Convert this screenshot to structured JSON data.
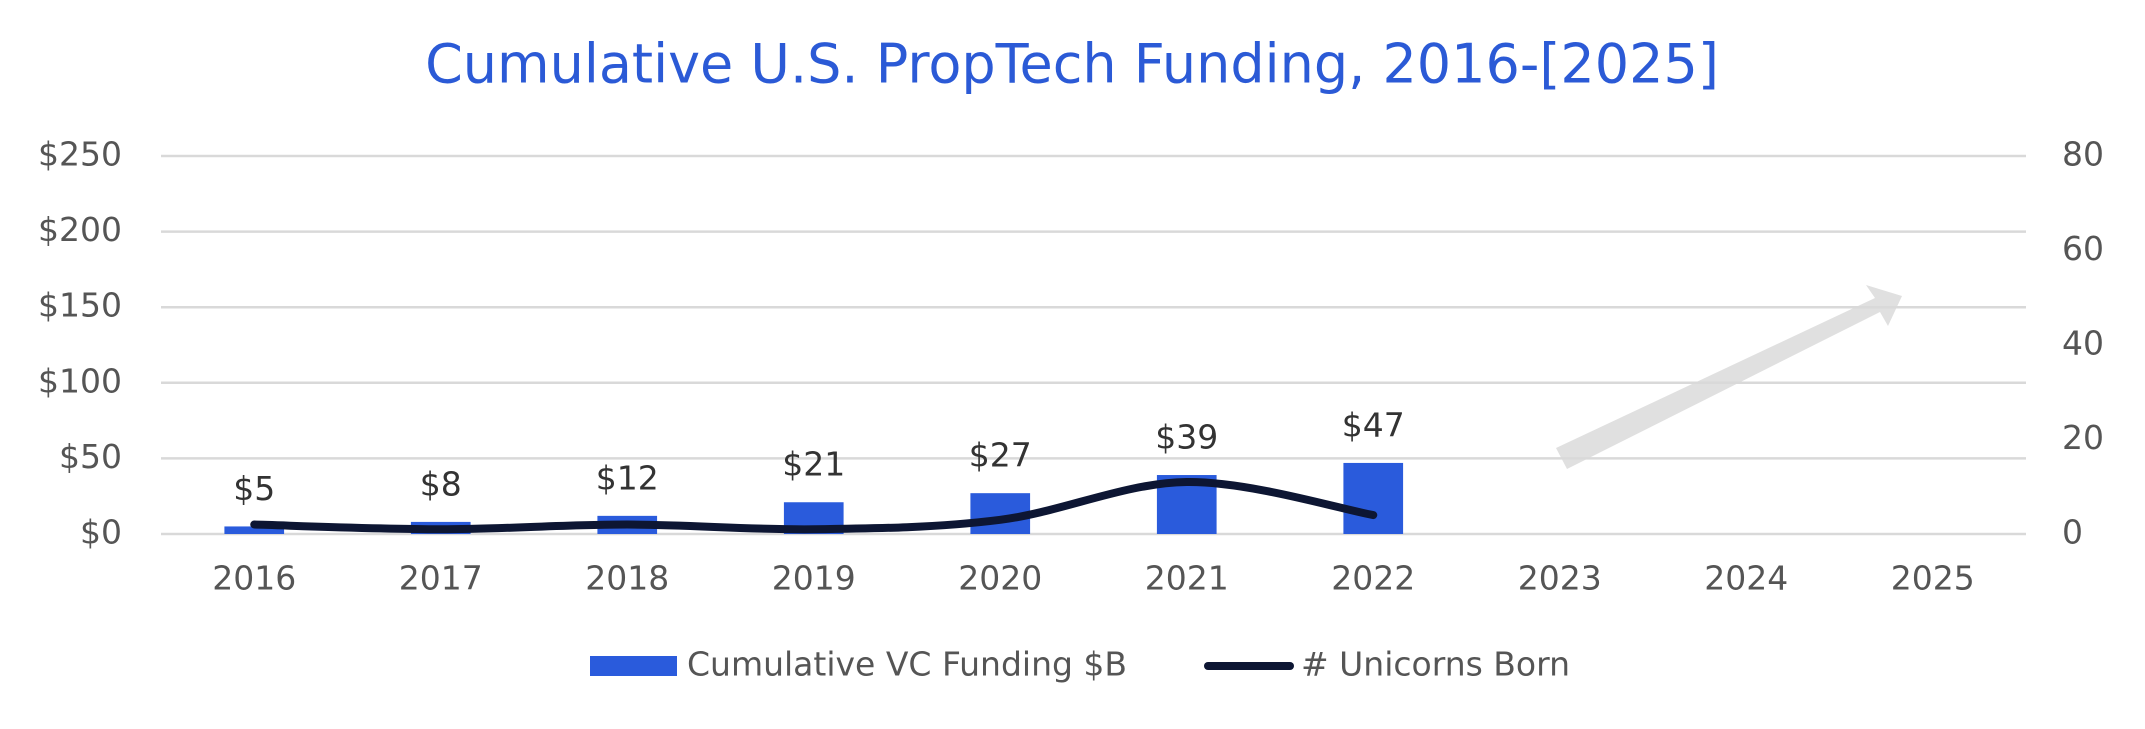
{
  "chart_data": {
    "type": "bar",
    "title": "Cumulative U.S. PropTech Funding, 2016-[2025]",
    "categories": [
      "2016",
      "2017",
      "2018",
      "2019",
      "2020",
      "2021",
      "2022",
      "2023",
      "2024",
      "2025"
    ],
    "series": [
      {
        "name": "Cumulative VC Funding $B",
        "type": "bar",
        "color": "#2a5bdc",
        "values": [
          5,
          8,
          12,
          21,
          27,
          39,
          47,
          null,
          null,
          null
        ],
        "value_labels": [
          "$5",
          "$8",
          "$12",
          "$21",
          "$27",
          "$39",
          "$47",
          null,
          null,
          null
        ]
      },
      {
        "name": "# Unicorns Born",
        "type": "line",
        "axis": "y2",
        "color": "#0d1633",
        "values": [
          2,
          1,
          2,
          1,
          3,
          11,
          4,
          null,
          null,
          null
        ]
      }
    ],
    "ylim": [
      0,
      250
    ],
    "yticks": [
      {
        "value": 0,
        "label": "$0"
      },
      {
        "value": 50,
        "label": "$50"
      },
      {
        "value": 100,
        "label": "$100"
      },
      {
        "value": 150,
        "label": "$150"
      },
      {
        "value": 200,
        "label": "$200"
      },
      {
        "value": 250,
        "label": "$250"
      }
    ],
    "y2lim": [
      0,
      80
    ],
    "y2ticks": [
      0,
      20,
      40,
      60,
      80
    ],
    "grid": true,
    "legend": "bottom"
  }
}
